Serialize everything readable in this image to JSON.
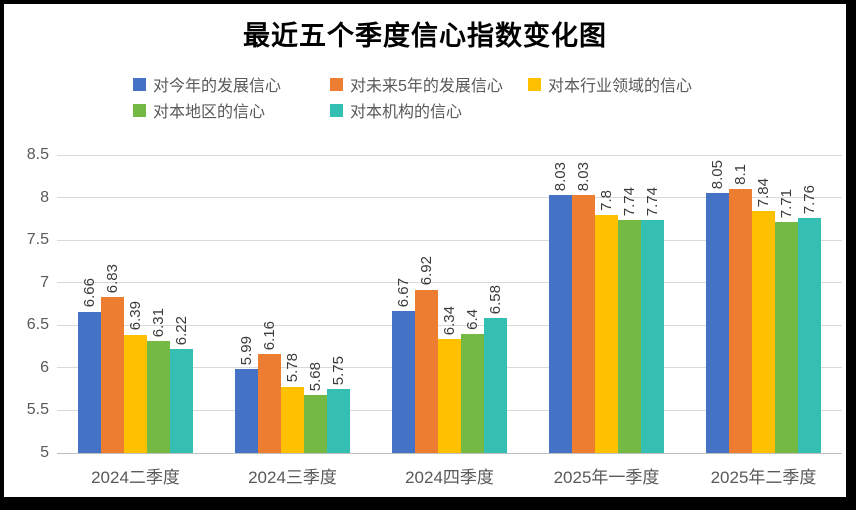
{
  "chart_data": {
    "type": "bar",
    "title": "最近五个季度信心指数变化图",
    "categories": [
      "2024二季度",
      "2024三季度",
      "2024四季度",
      "2025年一季度",
      "2025年二季度"
    ],
    "series": [
      {
        "name": "对今年的发展信心",
        "color": "#4472C4",
        "values": [
          6.66,
          5.99,
          6.67,
          8.03,
          8.05
        ],
        "labels": [
          "6.66",
          "5.99",
          "6.67",
          "8.03",
          "8.05"
        ]
      },
      {
        "name": "对未来5年的发展信心",
        "color": "#ED7D31",
        "values": [
          6.83,
          6.16,
          6.92,
          8.03,
          8.1
        ],
        "labels": [
          "6.83",
          "6.16",
          "6.92",
          "8.03",
          "8.1"
        ]
      },
      {
        "name": "对本行业领域的信心",
        "color": "#FFC000",
        "values": [
          6.39,
          5.78,
          6.34,
          7.8,
          7.84
        ],
        "labels": [
          "6.39",
          "5.78",
          "6.34",
          "7.8",
          "7.84"
        ]
      },
      {
        "name": "对本地区的信心",
        "color": "#74B944",
        "values": [
          6.31,
          5.68,
          6.4,
          7.74,
          7.71
        ],
        "labels": [
          "6.31",
          "5.68",
          "6.4",
          "7.74",
          "7.71"
        ]
      },
      {
        "name": "对本机构的信心",
        "color": "#35BEB2",
        "values": [
          6.22,
          5.75,
          6.58,
          7.74,
          7.76
        ],
        "labels": [
          "6.22",
          "5.75",
          "6.58",
          "7.74",
          "7.76"
        ]
      }
    ],
    "y_axis": {
      "min": 5,
      "max": 8.5,
      "step": 0.5,
      "tick_values": [
        8.5,
        8,
        7.5,
        7,
        6.5,
        6,
        5.5,
        5
      ],
      "tick_labels": [
        "8.5",
        "8",
        "7.5",
        "7",
        "6.5",
        "6",
        "5.5",
        "5"
      ]
    },
    "grid": true,
    "legend_position": "top",
    "data_label_rotation_deg": 90
  },
  "frame": {
    "border_color": "#000000",
    "background": "#ffffff"
  }
}
